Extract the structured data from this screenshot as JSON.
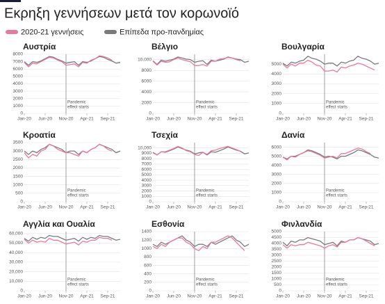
{
  "title": "Εκρηξη γεννήσεων μετά τον κορωνοϊό",
  "chart_data": [
    {
      "type": "line",
      "title": "Αυστρία",
      "ylim": [
        0,
        8000
      ],
      "yticks": [
        0,
        1000,
        2000,
        3000,
        4000,
        5000,
        6000,
        7000,
        8000
      ],
      "categories": [
        "Jan-20",
        null,
        null,
        null,
        null,
        "Jun-20",
        null,
        null,
        null,
        null,
        "Nov-20",
        null,
        null,
        null,
        null,
        "Apr-21",
        null,
        null,
        null,
        null,
        "Sep-21",
        null,
        null,
        null
      ],
      "vline": "Nov-20",
      "annotation": [
        "Pandemic",
        "effect starts"
      ],
      "grid": true,
      "series": [
        {
          "name": "2020-21 γεννήσεις",
          "color": "#e8789f",
          "values": [
            6900,
            6300,
            6800,
            6700,
            7000,
            7300,
            7600,
            7500,
            7200,
            7000,
            6500,
            6600,
            6700,
            6300,
            6900,
            6800,
            7200,
            7400,
            7800,
            7700,
            7500,
            7200,
            null,
            null
          ]
        },
        {
          "name": "Επίπεδα προ-πανδημίας",
          "color": "#7a7a7a",
          "values": [
            7000,
            6500,
            7000,
            6900,
            7100,
            7400,
            7700,
            7600,
            7300,
            7100,
            6800,
            6900,
            7000,
            6500,
            7000,
            6900,
            7100,
            7400,
            7700,
            7600,
            7300,
            7100,
            6800,
            6900
          ]
        }
      ]
    },
    {
      "type": "line",
      "title": "Βέλγιο",
      "ylim": [
        0,
        11000
      ],
      "yticks": [
        0,
        2000,
        4000,
        6000,
        8000,
        {
          "value": 10000,
          "label": "10,000"
        }
      ],
      "categories": [
        "Jan-20",
        null,
        null,
        null,
        null,
        "Jun-20",
        null,
        null,
        null,
        null,
        "Nov-20",
        null,
        null,
        null,
        null,
        "Apr-21",
        null,
        null,
        null,
        null,
        "Sep-21",
        null,
        null,
        null
      ],
      "vline": "Nov-20",
      "annotation": [
        "Pandemic",
        "effect starts"
      ],
      "grid": true,
      "series": [
        {
          "name": "2020-21 γεννήσεις",
          "color": "#e8789f",
          "values": [
            9700,
            9000,
            9700,
            9500,
            9600,
            10000,
            10300,
            10000,
            9800,
            9600,
            8900,
            8900,
            9100,
            8800,
            9700,
            9700,
            10100,
            10200,
            10400,
            10300,
            10000,
            9800,
            null,
            null
          ]
        },
        {
          "name": "Επίπεδα προ-πανδημίας",
          "color": "#7a7a7a",
          "values": [
            9800,
            9100,
            9900,
            9700,
            9900,
            10100,
            10500,
            10300,
            10100,
            10000,
            9500,
            9700,
            9800,
            9100,
            9900,
            9700,
            9900,
            10100,
            10500,
            10300,
            10100,
            10000,
            9500,
            9700
          ]
        }
      ]
    },
    {
      "type": "line",
      "title": "Βουλγαρία",
      "ylim": [
        0,
        6000
      ],
      "yticks": [
        0,
        1000,
        2000,
        3000,
        4000,
        5000
      ],
      "categories": [
        "Jan-20",
        null,
        null,
        null,
        null,
        "Jun-20",
        null,
        null,
        null,
        null,
        "Nov-20",
        null,
        null,
        null,
        null,
        "Apr-21",
        null,
        null,
        null,
        null,
        "Sep-21",
        null,
        null,
        null
      ],
      "vline": "Nov-20",
      "annotation": [
        "Pandemic",
        "effect starts"
      ],
      "grid": true,
      "series": [
        {
          "name": "2020-21 γεννήσεις",
          "color": "#e8789f",
          "values": [
            5000,
            4600,
            5000,
            4800,
            5100,
            5100,
            5400,
            5200,
            4900,
            4800,
            4300,
            4300,
            4400,
            4200,
            4700,
            4600,
            4800,
            4900,
            5100,
            5000,
            4800,
            4600,
            4400,
            null
          ]
        },
        {
          "name": "Επίπεδα προ-πανδημίας",
          "color": "#7a7a7a",
          "values": [
            5100,
            4800,
            5200,
            5100,
            5300,
            5400,
            5800,
            5600,
            5500,
            5300,
            5000,
            5100,
            5100,
            4800,
            5200,
            5100,
            5300,
            5400,
            5800,
            5600,
            5500,
            5300,
            5000,
            5100
          ]
        }
      ]
    },
    {
      "type": "line",
      "title": "Κροατία",
      "ylim": [
        0,
        3500
      ],
      "yticks": [
        0,
        500,
        1000,
        1500,
        2000,
        2500,
        3000,
        3500
      ],
      "categories": [
        "Jan-20",
        null,
        null,
        null,
        null,
        "Jun-20",
        null,
        null,
        null,
        null,
        "Nov-20",
        null,
        null,
        null,
        null,
        "Apr-21",
        null,
        null,
        null,
        null,
        "Sep-21",
        null,
        null,
        null
      ],
      "vline": "Nov-20",
      "annotation": [
        "Pandemic",
        "effect starts"
      ],
      "grid": true,
      "series": [
        {
          "name": "2020-21 γεννήσεις",
          "color": "#e8789f",
          "values": [
            2900,
            2600,
            2800,
            2700,
            3000,
            3100,
            3400,
            3300,
            3100,
            3000,
            2900,
            2900,
            2800,
            2700,
            3000,
            2900,
            3100,
            3200,
            3400,
            3300,
            3100,
            3000,
            null,
            null
          ]
        },
        {
          "name": "Επίπεδα προ-πανδημίας",
          "color": "#7a7a7a",
          "values": [
            3000,
            2800,
            3000,
            2900,
            3100,
            3200,
            3400,
            3300,
            3200,
            3100,
            2900,
            3000,
            3000,
            2800,
            3000,
            2900,
            3100,
            3200,
            3400,
            3300,
            3200,
            3100,
            2900,
            3000
          ]
        }
      ]
    },
    {
      "type": "line",
      "title": "Τσεχία",
      "ylim": [
        0,
        11000
      ],
      "yticks": [
        0,
        1000,
        2000,
        3000,
        4000,
        5000,
        6000,
        7000,
        8000,
        9000,
        {
          "value": 10000,
          "label": "10,000"
        }
      ],
      "categories": [
        "Jan-20",
        null,
        null,
        null,
        null,
        "Jun-20",
        null,
        null,
        null,
        null,
        "Nov-20",
        null,
        null,
        null,
        null,
        "Apr-21",
        null,
        null,
        null,
        null,
        "Sep-21",
        null,
        null,
        null
      ],
      "vline": "Nov-20",
      "annotation": [
        "Pandemic",
        "effect starts"
      ],
      "grid": true,
      "series": [
        {
          "name": "2020-21 γεννήσεις",
          "color": "#e8789f",
          "values": [
            9100,
            8700,
            9300,
            9300,
            9600,
            9900,
            10300,
            10000,
            9500,
            9300,
            8800,
            8600,
            9200,
            8800,
            9500,
            9600,
            9900,
            10100,
            10300,
            10000,
            9700,
            9400,
            null,
            null
          ]
        },
        {
          "name": "Επίπεδα προ-πανδημίας",
          "color": "#7a7a7a",
          "values": [
            9200,
            8700,
            9300,
            9200,
            9500,
            9800,
            10200,
            9900,
            9600,
            9400,
            8900,
            9100,
            9200,
            8700,
            9300,
            9200,
            9500,
            9800,
            10200,
            9900,
            9600,
            9400,
            8900,
            9100
          ]
        }
      ]
    },
    {
      "type": "line",
      "title": "Δανία",
      "ylim": [
        0,
        6500
      ],
      "yticks": [
        0,
        1000,
        2000,
        3000,
        4000,
        5000,
        6000
      ],
      "categories": [
        "Jan-20",
        null,
        null,
        null,
        null,
        "Jun-20",
        null,
        null,
        null,
        null,
        "Nov-20",
        null,
        null,
        null,
        null,
        "Apr-21",
        null,
        null,
        null,
        null,
        "Sep-21",
        null,
        null,
        null
      ],
      "vline": "Nov-20",
      "annotation": [
        "Pandemic",
        "effect starts"
      ],
      "grid": true,
      "series": [
        {
          "name": "2020-21 γεννήσεις",
          "color": "#e8789f",
          "values": [
            4900,
            4600,
            5000,
            4900,
            5200,
            5400,
            5600,
            5500,
            5300,
            5100,
            4800,
            4900,
            5000,
            4800,
            5300,
            5300,
            5500,
            5700,
            5900,
            5800,
            5500,
            5300,
            null,
            null
          ]
        },
        {
          "name": "Επίπεδα προ-πανδημίας",
          "color": "#7a7a7a",
          "values": [
            4900,
            4700,
            5000,
            5000,
            5200,
            5400,
            5700,
            5600,
            5400,
            5200,
            4900,
            5000,
            4900,
            4700,
            5000,
            5000,
            5200,
            5400,
            5700,
            5600,
            5400,
            5200,
            4900,
            4800
          ]
        }
      ]
    },
    {
      "type": "line",
      "title": "Αγγλία και Ουαλία",
      "ylim": [
        0,
        62000
      ],
      "yticks": [
        0,
        {
          "value": 10000,
          "label": "10,000"
        },
        {
          "value": 20000,
          "label": "20,000"
        },
        {
          "value": 30000,
          "label": "30,000"
        },
        {
          "value": 40000,
          "label": "40,000"
        },
        {
          "value": 50000,
          "label": "50,000"
        },
        {
          "value": 60000,
          "label": "60,000"
        }
      ],
      "categories": [
        "Jan-20",
        null,
        null,
        null,
        null,
        "Jun-20",
        null,
        null,
        null,
        null,
        "Nov-20",
        null,
        null,
        null,
        null,
        "Apr-21",
        null,
        null,
        null,
        null,
        "Sep-21",
        null,
        null,
        null
      ],
      "vline": "Nov-20",
      "annotation": [
        "Pandemic",
        "effect starts"
      ],
      "grid": true,
      "series": [
        {
          "name": "2020-21 γεννήσεις",
          "color": "#e8789f",
          "values": [
            54000,
            50000,
            53000,
            51000,
            52000,
            51000,
            55000,
            53000,
            53000,
            51000,
            49000,
            50000,
            51000,
            48000,
            52000,
            51000,
            53000,
            53000,
            56000,
            55000,
            55000,
            53000,
            null,
            null
          ]
        },
        {
          "name": "Επίπεδα προ-πανδημίας",
          "color": "#7a7a7a",
          "values": [
            55000,
            52000,
            56000,
            54000,
            56000,
            55000,
            58000,
            57000,
            57000,
            55000,
            53000,
            54000,
            55000,
            52000,
            56000,
            54000,
            56000,
            55000,
            58000,
            57000,
            57000,
            55000,
            53000,
            54000
          ]
        }
      ]
    },
    {
      "type": "line",
      "title": "Εσθονία",
      "ylim": [
        0,
        1400
      ],
      "yticks": [
        0,
        200,
        400,
        600,
        800,
        1000,
        1200,
        1400
      ],
      "categories": [
        "Jan-20",
        null,
        null,
        null,
        null,
        "Jun-20",
        null,
        null,
        null,
        null,
        "Nov-20",
        null,
        null,
        null,
        null,
        "Apr-21",
        null,
        null,
        null,
        null,
        "Sep-21",
        null,
        null,
        null
      ],
      "vline": "Nov-20",
      "annotation": [
        "Pandemic",
        "effect starts"
      ],
      "grid": true,
      "series": [
        {
          "name": "2020-21 γεννήσεις",
          "color": "#e8789f",
          "values": [
            1050,
            1000,
            1100,
            1050,
            1150,
            1200,
            1250,
            1250,
            1150,
            1100,
            1000,
            950,
            1050,
            1000,
            1150,
            1150,
            1200,
            1250,
            1300,
            1250,
            1150,
            1050,
            950,
            null
          ]
        },
        {
          "name": "Επίπεδα προ-πανδημίας",
          "color": "#7a7a7a",
          "values": [
            1100,
            1050,
            1150,
            1100,
            1150,
            1200,
            1250,
            1300,
            1200,
            1150,
            1050,
            1100,
            1100,
            1050,
            1150,
            1100,
            1150,
            1200,
            1250,
            1300,
            1200,
            1150,
            1050,
            1100
          ]
        }
      ]
    },
    {
      "type": "line",
      "title": "Φινλανδία",
      "ylim": [
        0,
        5000
      ],
      "yticks": [
        0,
        500,
        1000,
        1500,
        2000,
        2500,
        3000,
        3500,
        4000,
        4500,
        5000
      ],
      "categories": [
        "Jan-20",
        null,
        null,
        null,
        null,
        "Jun-20",
        null,
        null,
        null,
        null,
        "Nov-20",
        null,
        null,
        null,
        null,
        "Apr-21",
        null,
        null,
        null,
        null,
        "Sep-21",
        null,
        null,
        null
      ],
      "vline": "Nov-20",
      "annotation": [
        "Pandemic",
        "effect starts"
      ],
      "grid": true,
      "series": [
        {
          "name": "2020-21 γεννήσεις",
          "color": "#e8789f",
          "values": [
            3900,
            3600,
            3900,
            3800,
            3900,
            3900,
            4100,
            4000,
            3900,
            3800,
            3600,
            3800,
            3900,
            3700,
            4100,
            4100,
            4300,
            4300,
            4500,
            4400,
            4200,
            4000,
            3800,
            null
          ]
        },
        {
          "name": "Επίπεδα προ-πανδημίας",
          "color": "#7a7a7a",
          "values": [
            4100,
            3800,
            4200,
            4100,
            4300,
            4300,
            4500,
            4400,
            4300,
            4200,
            3900,
            4000,
            4100,
            3800,
            4200,
            4100,
            4300,
            4300,
            4500,
            4400,
            4300,
            4200,
            3900,
            4000
          ]
        }
      ]
    }
  ]
}
